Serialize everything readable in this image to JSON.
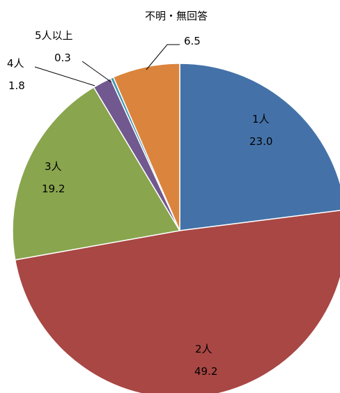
{
  "chart_data": {
    "type": "pie",
    "title": "",
    "start": "12 o'clock",
    "direction": "clockwise",
    "slices": [
      {
        "label": "1人",
        "value": 23.0,
        "value_text": "23.0",
        "color": "#4472a8"
      },
      {
        "label": "2人",
        "value": 49.2,
        "value_text": "49.2",
        "color": "#a84744"
      },
      {
        "label": "3人",
        "value": 19.2,
        "value_text": "19.2",
        "color": "#89a54e"
      },
      {
        "label": "4人",
        "value": 1.8,
        "value_text": "1.8",
        "color": "#71588f"
      },
      {
        "label": "5人以上",
        "value": 0.3,
        "value_text": "0.3",
        "color": "#4198af"
      },
      {
        "label": "不明・無回答",
        "value": 6.5,
        "value_text": "6.5",
        "color": "#db843d"
      }
    ]
  }
}
